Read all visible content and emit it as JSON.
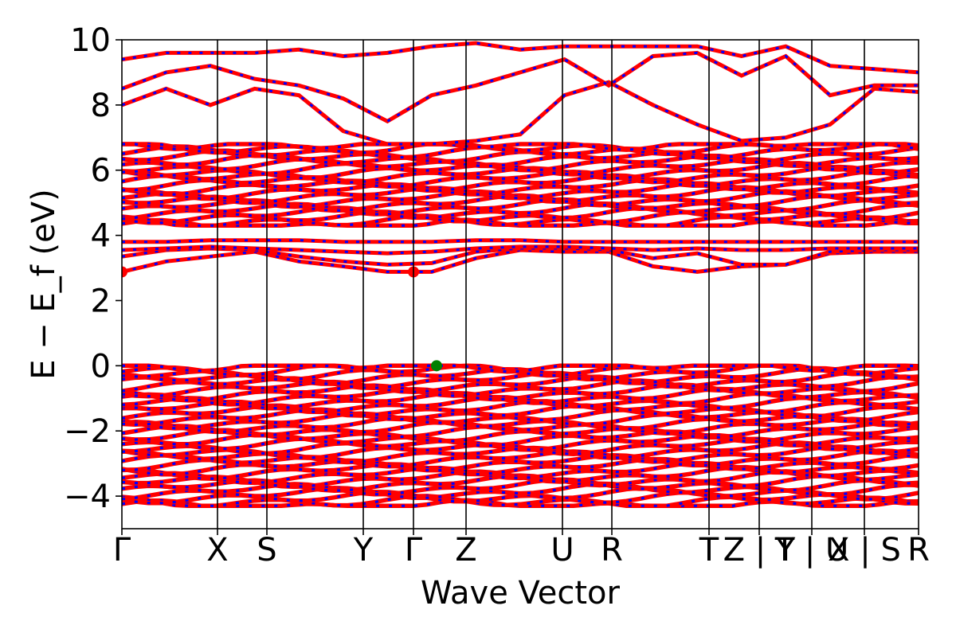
{
  "chart_data": {
    "type": "line",
    "title": "",
    "xlabel": "Wave Vector",
    "ylabel": "E − E_f (eV)",
    "ylim": [
      -5,
      10
    ],
    "yticks": [
      -4,
      -2,
      0,
      2,
      4,
      6,
      8,
      10
    ],
    "ytick_labels": [
      "−4",
      "−2",
      "0",
      "2",
      "4",
      "6",
      "8",
      "10"
    ],
    "xlim": [
      0,
      100
    ],
    "kpoints": [
      {
        "label": "Γ",
        "x": 0
      },
      {
        "label": "X",
        "x": 12.0
      },
      {
        "label": "S",
        "x": 18.2
      },
      {
        "label": "Y",
        "x": 30.3
      },
      {
        "label": "Γ",
        "x": 36.6
      },
      {
        "label": "Z",
        "x": 43.2
      },
      {
        "label": "U",
        "x": 55.3
      },
      {
        "label": "R",
        "x": 61.5
      },
      {
        "label": "T",
        "x": 73.7
      },
      {
        "label": "Z | Y",
        "x": 80.0
      },
      {
        "label": "T | U",
        "x": 86.6
      },
      {
        "label": "X | S",
        "x": 93.2
      },
      {
        "label": "R",
        "x": 100
      }
    ],
    "grid": false,
    "legend": "none",
    "series_colors": {
      "spin_up": "#ff0000",
      "spin_down": "#0000ff"
    },
    "markers": {
      "cbm": [
        {
          "x": 0,
          "y": 2.88,
          "color": "#ff0000"
        },
        {
          "x": 36.6,
          "y": 2.88,
          "color": "#ff0000"
        }
      ],
      "vbm": [
        {
          "x": 39.5,
          "y": 0.0,
          "color": "#008000"
        }
      ]
    },
    "band_regions": {
      "valence": {
        "bottom": -4.3,
        "top": 0.0
      },
      "conduction_dense": {
        "bottom": 4.3,
        "top": 6.8
      },
      "conduction_mid": [
        3.1,
        3.5,
        3.6,
        3.85
      ],
      "cbm_band": 2.88
    },
    "bands": [
      {
        "name": "cb1",
        "y": [
          2.88,
          3.2,
          3.35,
          3.5,
          3.2,
          3.05,
          2.88,
          2.88,
          3.3,
          3.55,
          3.5,
          3.5,
          3.05,
          2.88,
          3.05,
          3.1,
          3.45,
          3.5,
          3.5
        ]
      },
      {
        "name": "cb2",
        "y": [
          3.35,
          3.55,
          3.6,
          3.55,
          3.35,
          3.2,
          3.1,
          3.15,
          3.5,
          3.6,
          3.6,
          3.55,
          3.3,
          3.45,
          3.1,
          3.1,
          3.5,
          3.55,
          3.55
        ]
      },
      {
        "name": "cb3",
        "y": [
          3.55,
          3.6,
          3.65,
          3.6,
          3.55,
          3.5,
          3.45,
          3.5,
          3.6,
          3.65,
          3.65,
          3.6,
          3.55,
          3.6,
          3.55,
          3.55,
          3.6,
          3.6,
          3.6
        ]
      },
      {
        "name": "cb4",
        "y": [
          3.8,
          3.8,
          3.85,
          3.85,
          3.85,
          3.8,
          3.8,
          3.8,
          3.85,
          3.85,
          3.8,
          3.8,
          3.8,
          3.8,
          3.8,
          3.8,
          3.8,
          3.8,
          3.8
        ]
      },
      {
        "name": "hb1",
        "y": [
          8.0,
          8.5,
          8.0,
          8.5,
          8.3,
          7.2,
          6.8,
          6.8,
          6.9,
          7.1,
          8.3,
          8.7,
          8.0,
          7.4,
          6.9,
          7.0,
          7.4,
          8.5,
          8.4
        ]
      },
      {
        "name": "hb2",
        "y": [
          8.5,
          9.0,
          9.2,
          8.8,
          8.6,
          8.2,
          7.5,
          8.3,
          8.6,
          9.0,
          9.4,
          8.6,
          9.5,
          9.6,
          8.9,
          9.5,
          8.3,
          8.6,
          8.6
        ]
      },
      {
        "name": "hb3",
        "y": [
          9.4,
          9.6,
          9.6,
          9.6,
          9.7,
          9.5,
          9.6,
          9.8,
          9.9,
          9.7,
          9.8,
          9.8,
          9.8,
          9.8,
          9.5,
          9.8,
          9.2,
          9.1,
          9.0
        ]
      }
    ]
  }
}
